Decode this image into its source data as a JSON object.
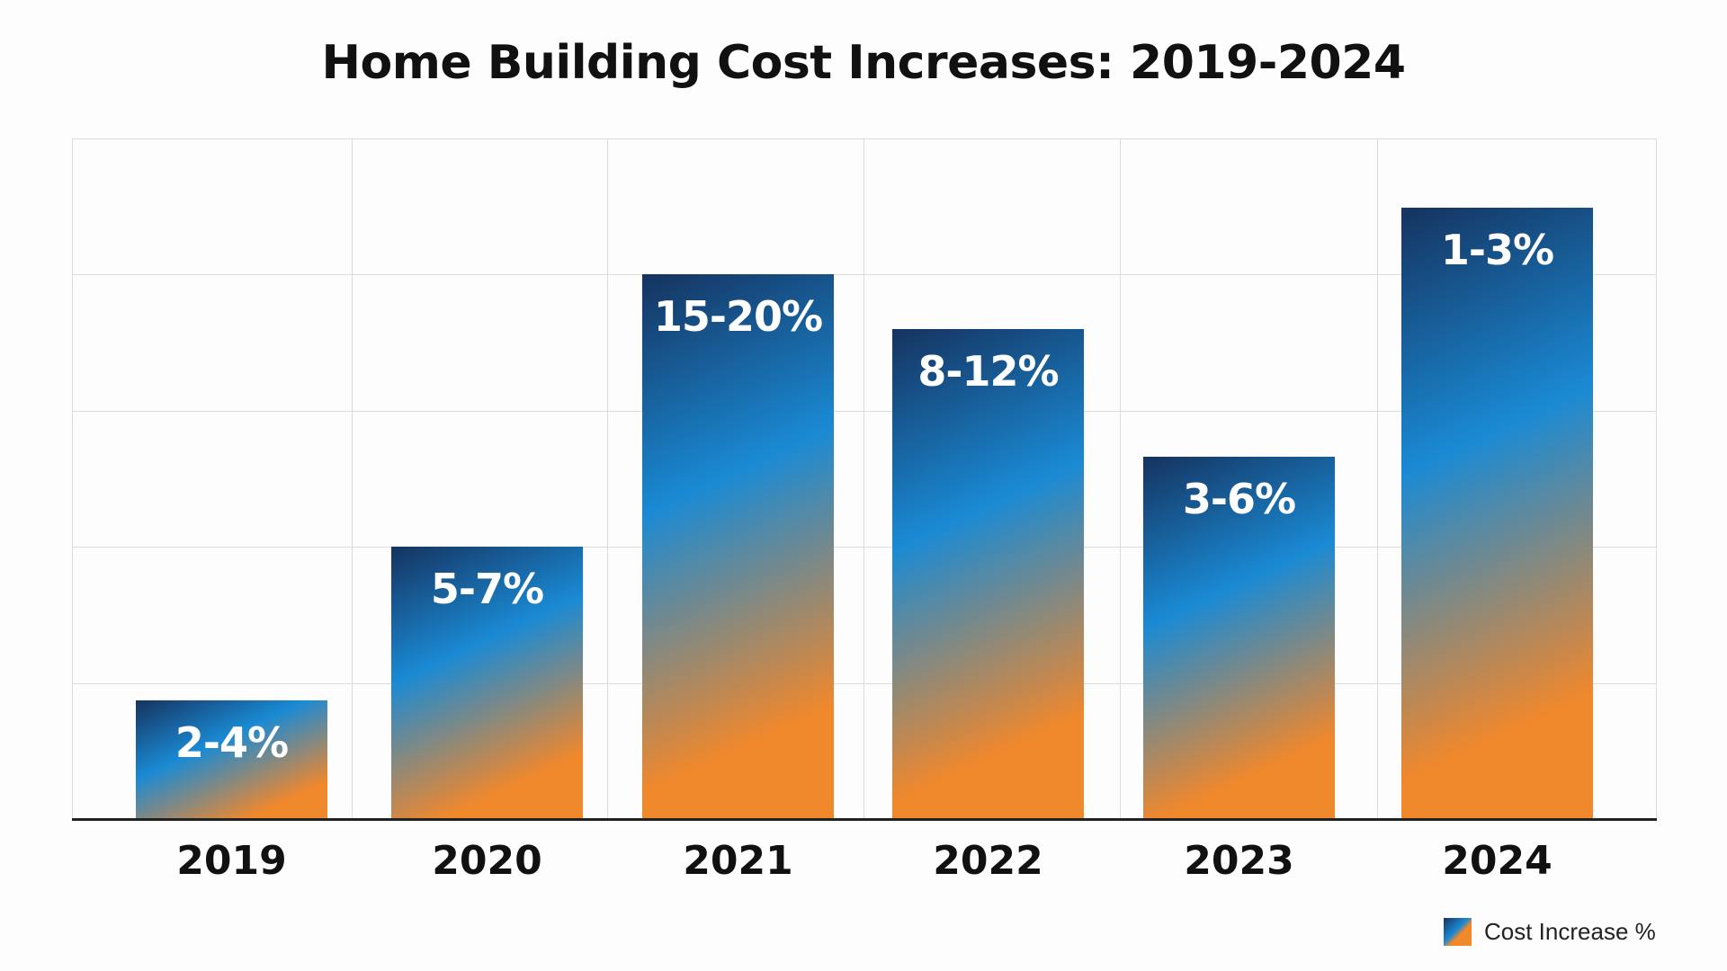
{
  "chart_data": {
    "type": "bar",
    "title": "Home Building Cost Increases: 2019-2024",
    "xlabel": "",
    "ylabel": "",
    "categories": [
      "2019",
      "2020",
      "2021",
      "2022",
      "2023",
      "2024"
    ],
    "data_labels": [
      "2-4%",
      "5-7%",
      "15-20%",
      "8-12%",
      "3-6%",
      "1-3%"
    ],
    "series": [
      {
        "name": "Cost Increase %",
        "values": [
          0.875,
          2.0,
          4.0,
          3.6,
          2.66,
          4.49
        ]
      }
    ],
    "ylim": [
      0,
      5
    ],
    "y_axis_ticks_shown": false,
    "grid": true,
    "legend": {
      "placement": "bottom-right",
      "label": "Cost Increase %"
    },
    "colors": {
      "gradient_start": "#15335f",
      "gradient_mid": "#1a8ad4",
      "gradient_end": "#f0882c"
    }
  }
}
